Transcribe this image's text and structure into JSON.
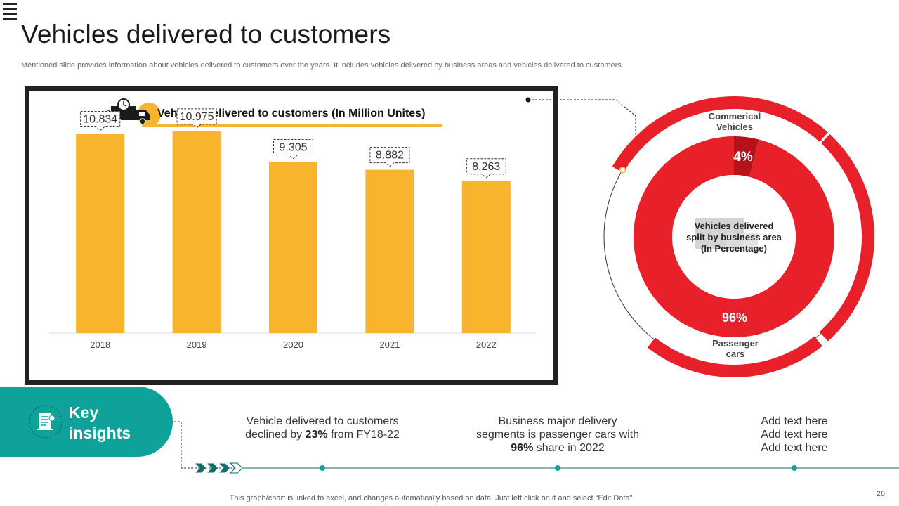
{
  "page": {
    "title": "Vehicles delivered to customers",
    "subtitle": "Mentioned slide provides information about vehicles delivered to customers over the years. It includes vehicles delivered by business areas and vehicles delivered to customers.",
    "footer": "This graph/chart is linked to excel,  and changes automatically based on data. Just left click on it and select “Edit Data”.",
    "page_number": "26"
  },
  "colors": {
    "bar": "#f7b42c",
    "donut_main": "#e8202a",
    "donut_dark": "#b5121b",
    "teal": "#0ea29a"
  },
  "chart_data": [
    {
      "type": "bar",
      "title": "Vehicles delivered to customers (In Million Unites)",
      "categories": [
        "2018",
        "2019",
        "2020",
        "2021",
        "2022"
      ],
      "values": [
        10.834,
        10.975,
        9.305,
        8.882,
        8.263
      ],
      "value_labels": [
        "10.834",
        "10.975",
        "9.305",
        "8.882",
        "8.263"
      ],
      "xlabel": "",
      "ylabel": "",
      "ylim": [
        0,
        12
      ]
    },
    {
      "type": "pie",
      "title": "Vehicles delivered split by business area (In Percentage)",
      "title_lines": [
        "Vehicles delivered",
        "split by business  area",
        "(In Percentage)"
      ],
      "categories": [
        "Commerical Vehicles",
        "Passenger cars"
      ],
      "category_lines": [
        [
          "Commerical",
          "Vehicles"
        ],
        [
          "Passenger",
          "cars"
        ]
      ],
      "values": [
        4,
        96
      ],
      "value_labels": [
        "4%",
        "96%"
      ]
    }
  ],
  "key_insights": {
    "label_lines": [
      "Key",
      "insights"
    ],
    "items": [
      {
        "pre": "Vehicle delivered to customers declined by",
        "bold": "23%",
        "post": "from FY18-22"
      },
      {
        "pre": "Business major delivery segments is passenger cars with",
        "bold": "96%",
        "post": "share in 2022"
      },
      {
        "lines": [
          "Add text here",
          "Add text here",
          "Add text here"
        ]
      }
    ]
  }
}
